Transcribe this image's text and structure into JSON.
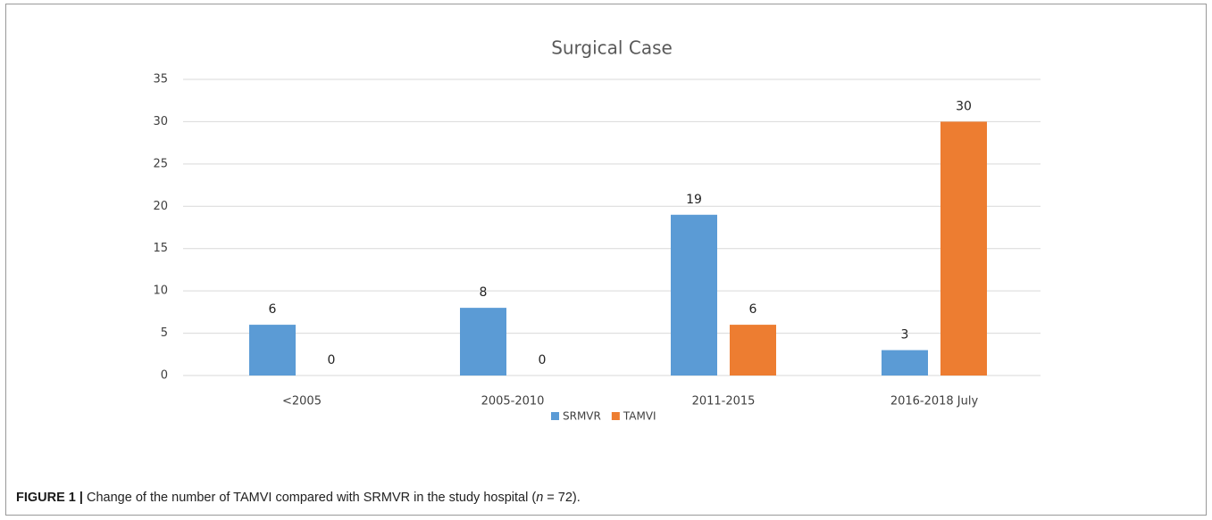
{
  "chart_data": {
    "type": "bar",
    "title": "Surgical Case",
    "categories": [
      "<2005",
      "2005-2010",
      "2011-2015",
      "2016-2018 July"
    ],
    "series": [
      {
        "name": "SRMVR",
        "color": "#5b9bd5",
        "values": [
          6,
          8,
          19,
          3
        ]
      },
      {
        "name": "TAMVI",
        "color": "#ed7d31",
        "values": [
          0,
          0,
          6,
          30
        ]
      }
    ],
    "ylim": [
      0,
      35
    ],
    "yticks": [
      0,
      5,
      10,
      15,
      20,
      25,
      30,
      35
    ],
    "grid": true,
    "legend": "bottom"
  },
  "caption": {
    "label": "FIGURE 1 |",
    "text": "Change of the number of TAMVI compared with SRMVR in the study hospital (",
    "variable": "n",
    "rest": " = 72)."
  }
}
